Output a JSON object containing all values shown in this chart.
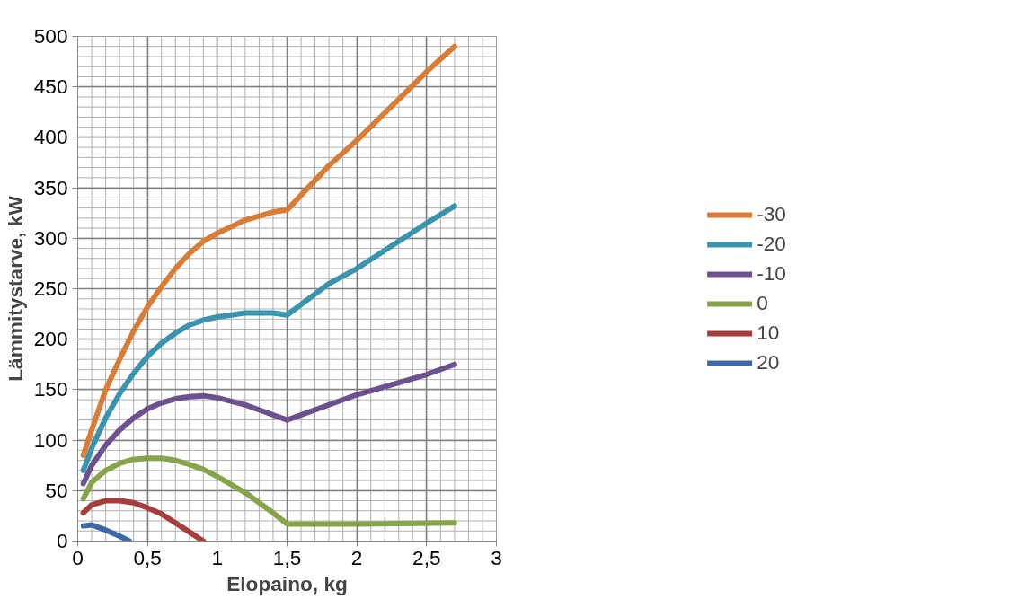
{
  "chart_data": {
    "type": "line",
    "xlabel": "Elopaino, kg",
    "ylabel": "Lämmitystarve, kW",
    "xlim": [
      0,
      3
    ],
    "ylim": [
      0,
      500
    ],
    "xticks": [
      0,
      {
        "value": 0.5,
        "label": "0,5"
      },
      1,
      {
        "value": 1.5,
        "label": "1,5"
      },
      2,
      {
        "value": 2.5,
        "label": "2,5"
      },
      3
    ],
    "yticks": [
      0,
      50,
      100,
      150,
      200,
      250,
      300,
      350,
      400,
      450,
      500
    ],
    "grid": true,
    "legend": "right",
    "marker": "none",
    "line_style": "solid",
    "series": [
      {
        "name": "-30",
        "color": "#d97c35",
        "x": [
          0.04,
          0.1,
          0.2,
          0.3,
          0.4,
          0.5,
          0.6,
          0.7,
          0.8,
          0.9,
          1.0,
          1.2,
          1.4,
          1.5,
          1.8,
          2.0,
          2.5,
          2.7
        ],
        "values": [
          85,
          110,
          150,
          180,
          208,
          232,
          252,
          270,
          285,
          297,
          305,
          318,
          326,
          328,
          372,
          397,
          465,
          490
        ]
      },
      {
        "name": "-20",
        "color": "#3a94ae",
        "x": [
          0.04,
          0.1,
          0.2,
          0.3,
          0.4,
          0.5,
          0.6,
          0.7,
          0.8,
          0.9,
          1.0,
          1.2,
          1.4,
          1.5,
          1.8,
          2.0,
          2.5,
          2.7
        ],
        "values": [
          70,
          92,
          122,
          146,
          166,
          183,
          196,
          206,
          214,
          219,
          222,
          226,
          226,
          224,
          255,
          270,
          315,
          332
        ]
      },
      {
        "name": "-10",
        "color": "#6b518e",
        "x": [
          0.04,
          0.1,
          0.2,
          0.3,
          0.4,
          0.5,
          0.6,
          0.7,
          0.8,
          0.9,
          1.0,
          1.2,
          1.4,
          1.5,
          1.8,
          2.0,
          2.5,
          2.7
        ],
        "values": [
          57,
          75,
          95,
          110,
          122,
          131,
          137,
          141,
          143,
          144,
          142,
          135,
          125,
          120,
          135,
          145,
          165,
          175
        ]
      },
      {
        "name": "0",
        "color": "#86a44a",
        "x": [
          0.04,
          0.1,
          0.2,
          0.3,
          0.4,
          0.5,
          0.6,
          0.7,
          0.8,
          0.9,
          1.0,
          1.2,
          1.4,
          1.5,
          2.0,
          2.7
        ],
        "values": [
          42,
          58,
          70,
          77,
          81,
          82,
          82,
          80,
          76,
          71,
          64,
          48,
          28,
          17,
          17,
          18
        ]
      },
      {
        "name": "10",
        "color": "#a63e3b",
        "x": [
          0.04,
          0.1,
          0.2,
          0.3,
          0.4,
          0.5,
          0.6,
          0.7,
          0.8,
          0.9
        ],
        "values": [
          28,
          36,
          40,
          40,
          38,
          33,
          27,
          18,
          9,
          0
        ]
      },
      {
        "name": "20",
        "color": "#3d6aa7",
        "x": [
          0.04,
          0.1,
          0.2,
          0.3,
          0.37
        ],
        "values": [
          15,
          16,
          11,
          5,
          0
        ]
      }
    ]
  }
}
